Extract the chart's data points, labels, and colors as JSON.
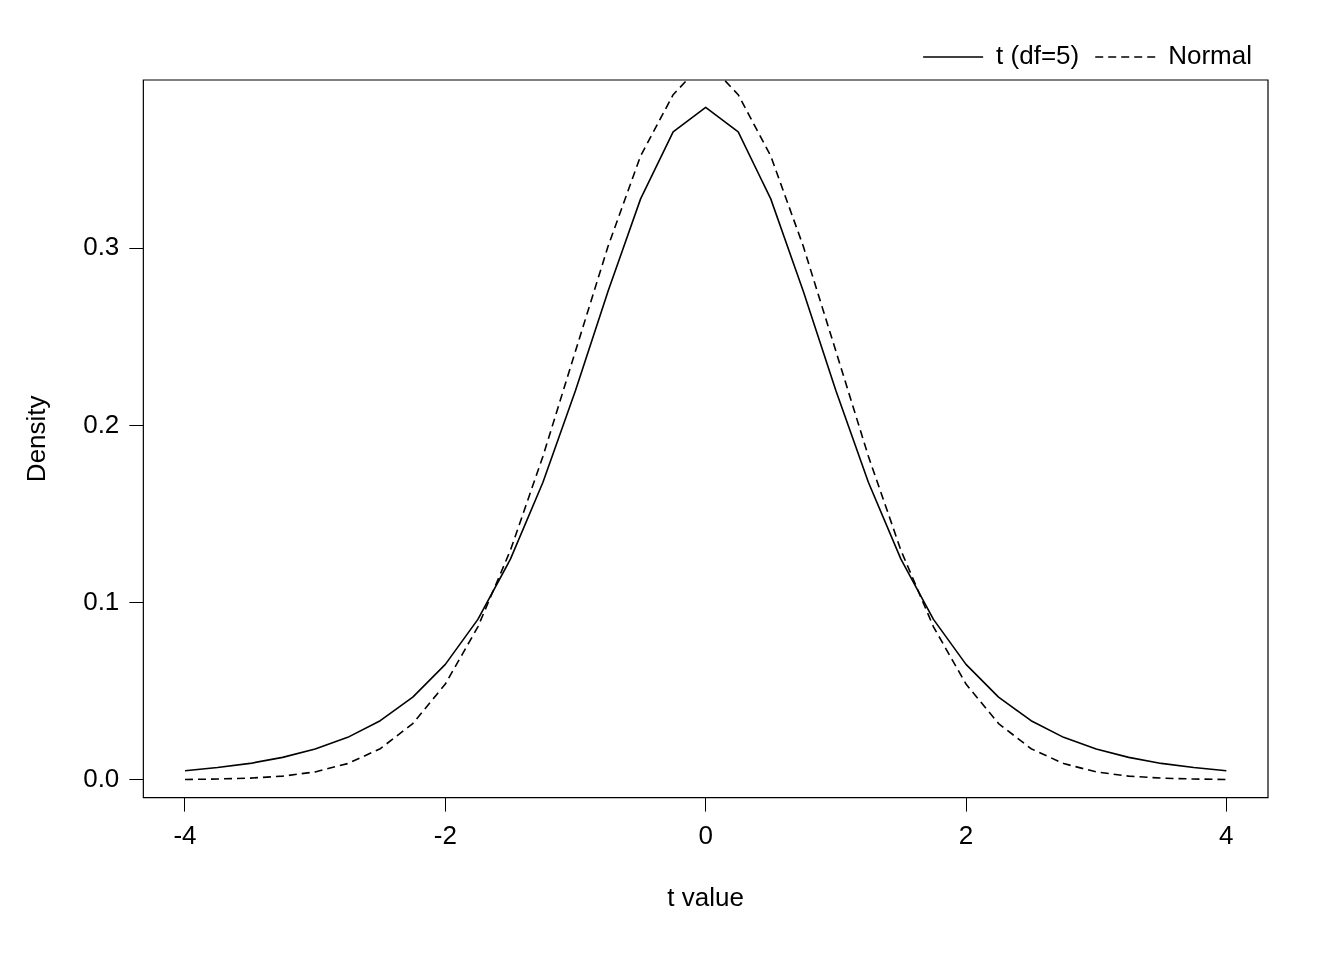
{
  "chart_data": {
    "type": "line",
    "xlabel": "t value",
    "ylabel": "Density",
    "xlim": [
      -4.32,
      4.32
    ],
    "ylim": [
      -0.0101,
      0.395
    ],
    "xticks": [
      -4,
      -2,
      0,
      2,
      4
    ],
    "yticks": [
      {
        "value": 0,
        "label": "0.0"
      },
      {
        "value": 0.1,
        "label": "0.1"
      },
      {
        "value": 0.2,
        "label": "0.2"
      },
      {
        "value": 0.3,
        "label": "0.3"
      }
    ],
    "grid": false,
    "legend": "top right",
    "marker": "none",
    "series": [
      {
        "name": "t (df=5)",
        "color": "#000000",
        "line_style": "solid",
        "x": [
          -4,
          -3.75,
          -3.5,
          -3.25,
          -3,
          -2.75,
          -2.5,
          -2.25,
          -2,
          -1.75,
          -1.5,
          -1.25,
          -1,
          -0.75,
          -0.5,
          -0.25,
          0,
          0.25,
          0.5,
          0.75,
          1,
          1.25,
          1.5,
          1.75,
          2,
          2.25,
          2.5,
          2.75,
          3,
          3.25,
          3.5,
          3.75,
          4
        ],
        "values": [
          0.0051,
          0.0069,
          0.0092,
          0.0126,
          0.0173,
          0.0239,
          0.0333,
          0.0466,
          0.0651,
          0.0905,
          0.1245,
          0.1679,
          0.2197,
          0.2757,
          0.3279,
          0.3657,
          0.3796,
          0.3657,
          0.3279,
          0.2757,
          0.2197,
          0.1679,
          0.1245,
          0.0905,
          0.0651,
          0.0466,
          0.0333,
          0.0239,
          0.0173,
          0.0126,
          0.0092,
          0.0069,
          0.0051
        ]
      },
      {
        "name": "Normal",
        "color": "#000000",
        "line_style": "dashed",
        "x": [
          -4,
          -3.75,
          -3.5,
          -3.25,
          -3,
          -2.75,
          -2.5,
          -2.25,
          -2,
          -1.75,
          -1.5,
          -1.25,
          -1,
          -0.75,
          -0.5,
          -0.25,
          -0.15,
          0,
          0.15,
          0.25,
          0.5,
          0.75,
          1,
          1.25,
          1.5,
          1.75,
          2,
          2.25,
          2.5,
          2.75,
          3,
          3.25,
          3.5,
          3.75,
          4
        ],
        "values": [
          0.0001,
          0.0004,
          0.0009,
          0.002,
          0.0044,
          0.0091,
          0.0175,
          0.0317,
          0.054,
          0.0863,
          0.1295,
          0.1826,
          0.242,
          0.3011,
          0.3521,
          0.3867,
          0.3945,
          null,
          0.3945,
          0.3867,
          0.3521,
          0.3011,
          0.242,
          0.1826,
          0.1295,
          0.0863,
          0.054,
          0.0317,
          0.0175,
          0.0091,
          0.0044,
          0.002,
          0.0009,
          0.0004,
          0.0001
        ]
      }
    ]
  }
}
